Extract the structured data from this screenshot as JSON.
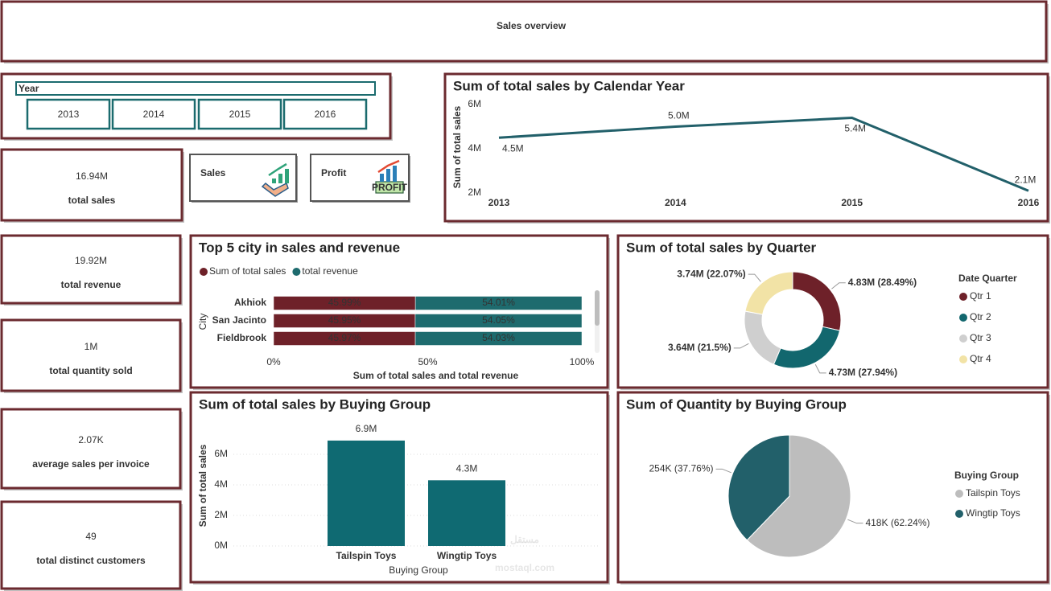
{
  "header": {
    "title": "Sales overview"
  },
  "slicer": {
    "title": "Year",
    "options": [
      "2013",
      "2014",
      "2015",
      "2016"
    ]
  },
  "kpis": [
    {
      "value": "16.94M",
      "label": "total sales"
    },
    {
      "value": "19.92M",
      "label": "total revenue"
    },
    {
      "value": "1M",
      "label": "total quantity sold"
    },
    {
      "value": "2.07K",
      "label": "average sales per invoice"
    },
    {
      "value": "49",
      "label": "total distinct customers"
    }
  ],
  "buttons": [
    {
      "label": "Sales"
    },
    {
      "label": "Profit",
      "icon_label": "PROFIT"
    }
  ],
  "watermark": {
    "logo": "مستقل",
    "site": "mostaql.com"
  },
  "chart_data": [
    {
      "type": "line",
      "title": "Sum of total sales by Calendar Year",
      "y_label": "Sum of total sales",
      "categories": [
        "2013",
        "2014",
        "2015",
        "2016"
      ],
      "values": [
        4.5,
        5.0,
        5.4,
        2.1
      ],
      "value_labels": [
        "4.5M",
        "5.0M",
        "5.4M",
        "2.1M"
      ],
      "color": "#22606a",
      "ylim": [
        2,
        6
      ],
      "yticks": [
        {
          "value": 2,
          "label": "2M"
        },
        {
          "value": 4,
          "label": "4M"
        },
        {
          "value": 6,
          "label": "6M"
        }
      ]
    },
    {
      "type": "stackedbar",
      "title": "Top 5 city in sales and revenue",
      "x_label": "Sum of total sales and total revenue",
      "y_label": "City",
      "categories": [
        "Akhiok",
        "San Jacinto",
        "Fieldbrook"
      ],
      "series": [
        {
          "name": "Sum of total sales",
          "color": "#6e2129",
          "values": [
            45.99,
            45.95,
            45.97
          ],
          "value_labels": [
            "45.99%",
            "45.95%",
            "45.97%"
          ]
        },
        {
          "name": "total revenue",
          "color": "#1e6b6e",
          "values": [
            54.01,
            54.05,
            54.03
          ],
          "value_labels": [
            "54.01%",
            "54.05%",
            "54.03%"
          ]
        }
      ],
      "xlim": [
        0,
        100
      ],
      "xticks": [
        {
          "value": 0,
          "label": "0%"
        },
        {
          "value": 50,
          "label": "50%"
        },
        {
          "value": 100,
          "label": "100%"
        }
      ]
    },
    {
      "type": "donut",
      "title": "Sum of total sales by Quarter",
      "legend_title": "Date Quarter",
      "categories": [
        "Qtr 1",
        "Qtr 2",
        "Qtr 3",
        "Qtr 4"
      ],
      "values": [
        4.83,
        4.73,
        3.64,
        3.74
      ],
      "value_labels": [
        "4.83M (28.49%)",
        "4.73M (27.94%)",
        "3.64M (21.5%)",
        "3.74M (22.07%)"
      ],
      "colors": [
        "#6e2129",
        "#12676e",
        "#cfcfcf",
        "#f2e3a6"
      ]
    },
    {
      "type": "bar",
      "title": "Sum of total sales by Buying Group",
      "x_label": "Buying Group",
      "y_label": "Sum of total sales",
      "categories": [
        "Tailspin Toys",
        "Wingtip Toys"
      ],
      "values": [
        6.9,
        4.3
      ],
      "value_labels": [
        "6.9M",
        "4.3M"
      ],
      "color": "#0f6a72",
      "ylim": [
        0,
        8
      ],
      "yticks": [
        {
          "value": 0,
          "label": "0M"
        },
        {
          "value": 2,
          "label": "2M"
        },
        {
          "value": 4,
          "label": "4M"
        },
        {
          "value": 6,
          "label": "6M"
        }
      ],
      "grid": true
    },
    {
      "type": "pie",
      "title": "Sum of Quantity by Buying Group",
      "legend_title": "Buying Group",
      "categories": [
        "Tailspin Toys",
        "Wingtip Toys"
      ],
      "values": [
        418,
        254
      ],
      "value_labels": [
        "418K (62.24%)",
        "254K (37.76%)"
      ],
      "colors": [
        "#bdbdbd",
        "#22606a"
      ]
    }
  ]
}
